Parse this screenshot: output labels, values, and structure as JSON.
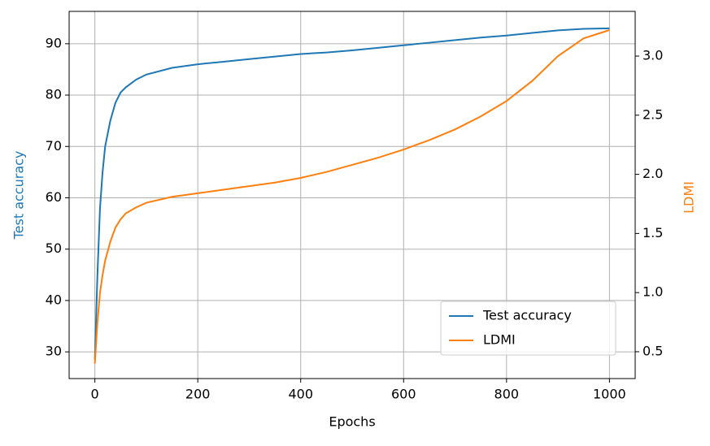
{
  "chart_data": {
    "type": "line",
    "xlabel": "Epochs",
    "ylabel": "Test accuracy",
    "y2label": "LDMI",
    "x": [
      0,
      5,
      10,
      15,
      20,
      30,
      40,
      50,
      60,
      80,
      100,
      150,
      200,
      250,
      300,
      350,
      400,
      450,
      500,
      550,
      600,
      650,
      700,
      750,
      800,
      850,
      900,
      950,
      1000
    ],
    "series": [
      {
        "name": "Test accuracy",
        "color": "#1f77b4",
        "axis": "y",
        "values": [
          28.5,
          45,
          58,
          65,
          70,
          75,
          78.5,
          80.5,
          81.5,
          83,
          84,
          85.3,
          86,
          86.5,
          87,
          87.5,
          88,
          88.3,
          88.7,
          89.2,
          89.7,
          90.2,
          90.7,
          91.2,
          91.6,
          92.1,
          92.6,
          92.9,
          93
        ]
      },
      {
        "name": "LDMI",
        "color": "#ff7f0e",
        "axis": "y2",
        "values": [
          0.4,
          0.75,
          1.0,
          1.15,
          1.27,
          1.43,
          1.55,
          1.62,
          1.67,
          1.72,
          1.76,
          1.81,
          1.84,
          1.87,
          1.9,
          1.93,
          1.97,
          2.02,
          2.08,
          2.14,
          2.21,
          2.29,
          2.38,
          2.49,
          2.62,
          2.79,
          3.0,
          3.15,
          3.22
        ]
      }
    ],
    "xlim": [
      -50,
      1050
    ],
    "xticks": [
      0,
      200,
      400,
      600,
      800,
      1000
    ],
    "ylim": [
      24.8,
      96.3
    ],
    "yticks": [
      30,
      40,
      50,
      60,
      70,
      80,
      90
    ],
    "y2lim": [
      0.273,
      3.378
    ],
    "y2ticks": [
      0.5,
      {
        "value": 1,
        "label": "1.0"
      },
      1.5,
      {
        "value": 2,
        "label": "2.0"
      },
      2.5,
      {
        "value": 3,
        "label": "3.0"
      }
    ],
    "grid": true,
    "legend": "lower right"
  }
}
